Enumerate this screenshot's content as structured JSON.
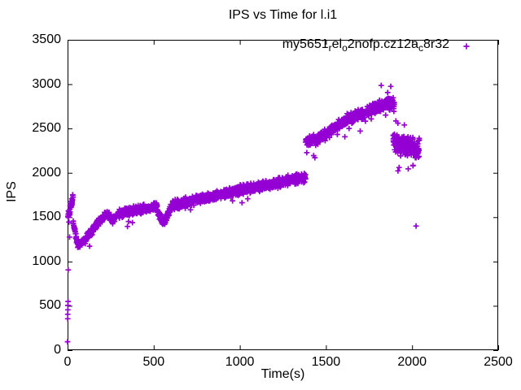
{
  "title": "IPS vs Time for l.i1",
  "axes": {
    "x": {
      "label": "Time(s)",
      "min": 0,
      "max": 2500,
      "tick_values": [
        0,
        500,
        1000,
        1500,
        2000,
        2500
      ],
      "tick_labels": [
        "0",
        "500",
        "1000",
        "1500",
        "2000",
        "2500"
      ]
    },
    "y": {
      "label": "IPS",
      "min": 0,
      "max": 3500,
      "tick_values": [
        0,
        500,
        1000,
        1500,
        2000,
        2500,
        3000,
        3500
      ],
      "tick_labels": [
        "0",
        "500",
        "1000",
        "1500",
        "2000",
        "2500",
        "3000",
        "3500"
      ]
    }
  },
  "legend": {
    "label_plain": "my5651_rel_o2nofp.cz12a_c8r32",
    "label_parts": [
      {
        "text": "my5651"
      },
      {
        "text": "r",
        "sub": true
      },
      {
        "text": "el"
      },
      {
        "text": "o",
        "sub": true
      },
      {
        "text": "2nofp.cz12a"
      },
      {
        "text": "c",
        "sub": true
      },
      {
        "text": "8r32"
      }
    ],
    "marker": "plus"
  },
  "style": {
    "marker_color": "#9400d3",
    "axis_color": "#000000",
    "text_color": "#000000",
    "background": "#ffffff"
  },
  "chart_data": {
    "type": "scatter",
    "title": "IPS vs Time for l.i1",
    "xlabel": "Time(s)",
    "ylabel": "IPS",
    "xlim": [
      0,
      2500
    ],
    "ylim": [
      0,
      3500
    ],
    "grid": false,
    "legend_position": "top-right-inside",
    "description": "Benchmark throughput (IPS) vs time sampled ~1/s: warm-up points below 1000 IPS near t=0; dense band dips from ~1600 to ~1180 by t=60s, rises steadily to ~1950 by t=1380s; jumps to ~2350 at t=1390s, climbs to a peak of ~2950 near t=1875s; then falls to a dense cluster of ~2100-2550 IPS for t=1890-2040s, with one isolated outlier at (2023, 1400).",
    "series": [
      {
        "name": "my5651_rel_o2nofp.cz12a_c8r32",
        "marker": "plus",
        "color": "#9400d3",
        "noise_seed": 1337,
        "trend_segments": [
          {
            "t0": 2,
            "t1": 32,
            "ips0": 1510,
            "ips1": 1720,
            "noise": 70,
            "step": 0.7
          },
          {
            "t0": 32,
            "t1": 58,
            "ips0": 1450,
            "ips1": 1190,
            "noise": 45,
            "step": 1
          },
          {
            "t0": 58,
            "t1": 100,
            "ips0": 1180,
            "ips1": 1235,
            "noise": 45,
            "step": 1
          },
          {
            "t0": 100,
            "t1": 230,
            "ips0": 1245,
            "ips1": 1555,
            "noise": 55,
            "step": 1
          },
          {
            "t0": 230,
            "t1": 262,
            "ips0": 1545,
            "ips1": 1460,
            "noise": 45,
            "step": 1
          },
          {
            "t0": 262,
            "t1": 300,
            "ips0": 1460,
            "ips1": 1545,
            "noise": 45,
            "step": 1
          },
          {
            "t0": 300,
            "t1": 520,
            "ips0": 1545,
            "ips1": 1630,
            "noise": 58,
            "step": 1
          },
          {
            "t0": 520,
            "t1": 562,
            "ips0": 1560,
            "ips1": 1430,
            "noise": 50,
            "step": 1
          },
          {
            "t0": 562,
            "t1": 600,
            "ips0": 1440,
            "ips1": 1620,
            "noise": 52,
            "step": 1
          },
          {
            "t0": 600,
            "t1": 1000,
            "ips0": 1630,
            "ips1": 1805,
            "noise": 62,
            "step": 1
          },
          {
            "t0": 1000,
            "t1": 1382,
            "ips0": 1805,
            "ips1": 1950,
            "noise": 68,
            "step": 1
          },
          {
            "t0": 1382,
            "t1": 1455,
            "ips0": 2355,
            "ips1": 2385,
            "noise": 70,
            "step": 1
          },
          {
            "t0": 1455,
            "t1": 1620,
            "ips0": 2385,
            "ips1": 2600,
            "noise": 65,
            "step": 1
          },
          {
            "t0": 1620,
            "t1": 1850,
            "ips0": 2600,
            "ips1": 2780,
            "noise": 70,
            "step": 1
          },
          {
            "t0": 1850,
            "t1": 1897,
            "ips0": 2790,
            "ips1": 2770,
            "noise": 85,
            "step": 0.8
          },
          {
            "t0": 1890,
            "t1": 2042,
            "ips0": 2350,
            "ips1": 2260,
            "noise": 140,
            "step": 0.8
          }
        ],
        "points": [
          [
            0,
            95
          ],
          [
            1,
            355
          ],
          [
            1,
            405
          ],
          [
            2,
            455
          ],
          [
            2,
            505
          ],
          [
            3,
            550
          ],
          [
            4,
            905
          ],
          [
            12,
            1275
          ],
          [
            1821,
            2985
          ],
          [
            1858,
            2905
          ],
          [
            1876,
            2975
          ],
          [
            1906,
            2585
          ],
          [
            1918,
            2560
          ],
          [
            1955,
            2540
          ],
          [
            1925,
            2060
          ],
          [
            1978,
            2045
          ],
          [
            2005,
            2080
          ],
          [
            2023,
            1400
          ]
        ]
      }
    ]
  }
}
